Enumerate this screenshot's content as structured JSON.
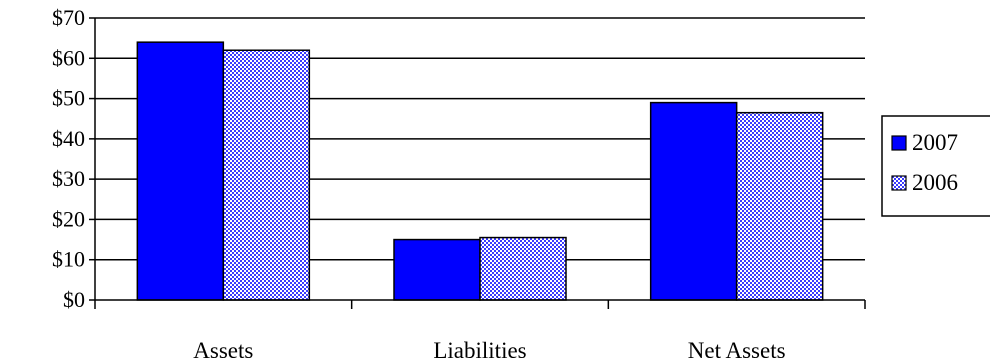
{
  "chart_data": {
    "type": "bar",
    "title": "",
    "xlabel": "",
    "ylabel": "",
    "categories": [
      "Assets",
      "Liabilities",
      "Net Assets"
    ],
    "series": [
      {
        "name": "2007",
        "values": [
          64,
          15,
          49
        ]
      },
      {
        "name": "2006",
        "values": [
          62,
          15.5,
          46.5
        ]
      }
    ],
    "ylim": [
      0,
      70
    ],
    "y_ticks": [
      0,
      10,
      20,
      30,
      40,
      50,
      60,
      70
    ],
    "y_tick_labels": [
      "$0",
      "$10",
      "$20",
      "$30",
      "$40",
      "$50",
      "$60",
      "$70"
    ],
    "grid": "horizontal",
    "legend_position": "right",
    "colors": {
      "2007": "#0000ff",
      "2006_pattern_primary": "#4040ff",
      "2006_pattern_secondary": "#ffffff",
      "grid": "#000000",
      "background": "#ffffff"
    }
  }
}
